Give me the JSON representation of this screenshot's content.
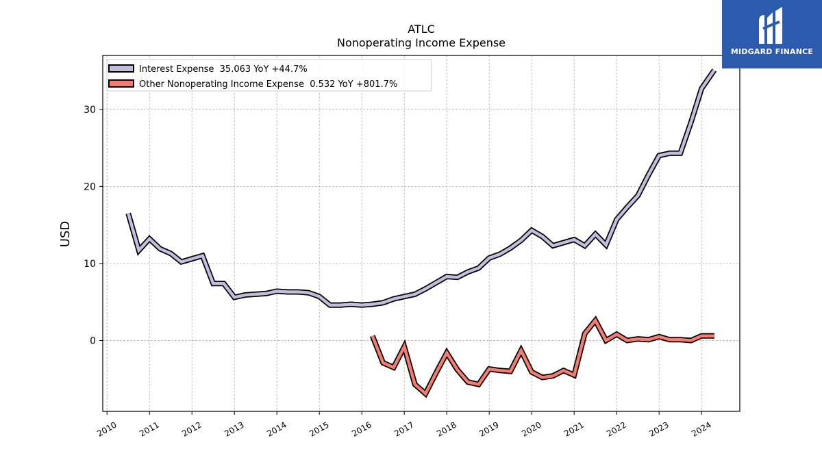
{
  "chart_data": {
    "type": "line",
    "title": "ATLC",
    "subtitle": "Nonoperating Income Expense",
    "ylabel": "USD",
    "xlabel": "",
    "xlim": [
      2009.9,
      2024.9
    ],
    "ylim": [
      -9.2,
      37.0
    ],
    "yticks": [
      0,
      10,
      20,
      30
    ],
    "xticks": [
      "2010",
      "2011",
      "2012",
      "2013",
      "2014",
      "2015",
      "2016",
      "2017",
      "2018",
      "2019",
      "2020",
      "2021",
      "2022",
      "2023",
      "2024"
    ],
    "grid": true,
    "legend_position": "top-left",
    "series": [
      {
        "name": "Interest Expense  35.063 YoY +44.7%",
        "color": "#c1bddb",
        "x": [
          2010.5,
          2010.75,
          2011.0,
          2011.25,
          2011.5,
          2011.75,
          2012.0,
          2012.25,
          2012.5,
          2012.75,
          2013.0,
          2013.25,
          2013.5,
          2013.75,
          2014.0,
          2014.25,
          2014.5,
          2014.75,
          2015.0,
          2015.25,
          2015.5,
          2015.75,
          2016.0,
          2016.25,
          2016.5,
          2016.75,
          2017.0,
          2017.25,
          2017.5,
          2017.75,
          2018.0,
          2018.25,
          2018.5,
          2018.75,
          2019.0,
          2019.25,
          2019.5,
          2019.75,
          2020.0,
          2020.25,
          2020.5,
          2020.75,
          2021.0,
          2021.25,
          2021.5,
          2021.75,
          2022.0,
          2022.25,
          2022.5,
          2022.75,
          2023.0,
          2023.25,
          2023.5,
          2023.75,
          2024.0,
          2024.3
        ],
        "y": [
          16.5,
          11.7,
          13.2,
          11.9,
          11.3,
          10.2,
          10.6,
          11.0,
          7.4,
          7.4,
          5.6,
          5.9,
          6.0,
          6.1,
          6.4,
          6.3,
          6.3,
          6.2,
          5.7,
          4.6,
          4.6,
          4.7,
          4.6,
          4.7,
          4.9,
          5.4,
          5.7,
          6.0,
          6.7,
          7.5,
          8.3,
          8.2,
          8.9,
          9.4,
          10.7,
          11.2,
          12.0,
          13.0,
          14.3,
          13.5,
          12.3,
          12.7,
          13.1,
          12.3,
          13.8,
          12.4,
          15.7,
          17.3,
          18.8,
          21.5,
          24.0,
          24.3,
          24.3,
          28.3,
          32.7,
          35.1
        ]
      },
      {
        "name": "Other Nonoperating Income Expense  0.532 YoY +801.7%",
        "color": "#f47c70",
        "x": [
          2016.25,
          2016.5,
          2016.75,
          2017.0,
          2017.25,
          2017.5,
          2017.75,
          2018.0,
          2018.25,
          2018.5,
          2018.75,
          2019.0,
          2019.25,
          2019.5,
          2019.75,
          2020.0,
          2020.25,
          2020.5,
          2020.75,
          2021.0,
          2021.25,
          2021.5,
          2021.75,
          2022.0,
          2022.25,
          2022.5,
          2022.75,
          2023.0,
          2023.25,
          2023.5,
          2023.75,
          2024.0,
          2024.3
        ],
        "y": [
          0.6,
          -2.9,
          -3.5,
          -0.8,
          -5.7,
          -6.9,
          -4.2,
          -1.6,
          -3.8,
          -5.4,
          -5.7,
          -3.7,
          -3.9,
          -4.0,
          -1.3,
          -4.1,
          -4.8,
          -4.6,
          -3.9,
          -4.5,
          0.9,
          2.6,
          0.0,
          0.8,
          0.0,
          0.2,
          0.1,
          0.5,
          0.1,
          0.1,
          0.0,
          0.6,
          0.6
        ]
      }
    ]
  },
  "logo": {
    "text": "MIDGARD FINANCE"
  }
}
